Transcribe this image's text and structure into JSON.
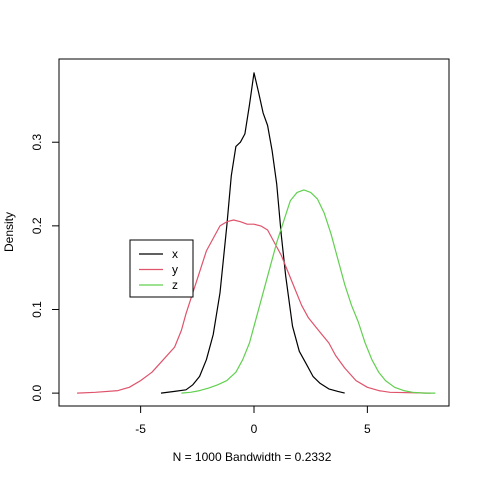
{
  "chart_data": {
    "type": "line",
    "title": "",
    "xlabel": "N = 1000   Bandwidth = 0.2332",
    "ylabel": "Density",
    "xlim": [
      -8.6,
      8.6
    ],
    "ylim": [
      -0.0154,
      0.3995
    ],
    "x_ticks": [
      -5,
      0,
      5
    ],
    "x_tick_labels": [
      "-5",
      "0",
      "5"
    ],
    "y_ticks": [
      0.0,
      0.1,
      0.2,
      0.3
    ],
    "y_tick_labels": [
      "0.0",
      "0.1",
      "0.2",
      "0.3"
    ],
    "grid": false,
    "legend": {
      "placement": "center-left",
      "entries": [
        {
          "name": "x",
          "color": "#000000"
        },
        {
          "name": "y",
          "color": "#DF536B"
        },
        {
          "name": "z",
          "color": "#61D04F"
        }
      ]
    },
    "series": [
      {
        "name": "x",
        "color": "#000000",
        "points": [
          [
            -4.1,
            0.0
          ],
          [
            -3.5,
            0.002
          ],
          [
            -3.0,
            0.004
          ],
          [
            -2.7,
            0.01
          ],
          [
            -2.4,
            0.02
          ],
          [
            -2.1,
            0.04
          ],
          [
            -1.8,
            0.07
          ],
          [
            -1.5,
            0.12
          ],
          [
            -1.2,
            0.2
          ],
          [
            -1.0,
            0.26
          ],
          [
            -0.8,
            0.295
          ],
          [
            -0.6,
            0.3
          ],
          [
            -0.4,
            0.31
          ],
          [
            -0.2,
            0.345
          ],
          [
            0.0,
            0.383
          ],
          [
            0.2,
            0.36
          ],
          [
            0.4,
            0.335
          ],
          [
            0.6,
            0.32
          ],
          [
            0.8,
            0.29
          ],
          [
            1.0,
            0.25
          ],
          [
            1.2,
            0.19
          ],
          [
            1.4,
            0.14
          ],
          [
            1.7,
            0.08
          ],
          [
            2.0,
            0.05
          ],
          [
            2.3,
            0.035
          ],
          [
            2.6,
            0.02
          ],
          [
            2.9,
            0.012
          ],
          [
            3.3,
            0.005
          ],
          [
            3.7,
            0.002
          ],
          [
            4.0,
            0.0
          ]
        ]
      },
      {
        "name": "y",
        "color": "#DF536B",
        "points": [
          [
            -7.8,
            0.0
          ],
          [
            -7.0,
            0.001
          ],
          [
            -6.0,
            0.003
          ],
          [
            -5.5,
            0.007
          ],
          [
            -5.0,
            0.015
          ],
          [
            -4.5,
            0.025
          ],
          [
            -4.0,
            0.04
          ],
          [
            -3.5,
            0.055
          ],
          [
            -3.2,
            0.075
          ],
          [
            -3.0,
            0.095
          ],
          [
            -2.7,
            0.12
          ],
          [
            -2.4,
            0.145
          ],
          [
            -2.1,
            0.17
          ],
          [
            -1.8,
            0.185
          ],
          [
            -1.5,
            0.2
          ],
          [
            -1.2,
            0.205
          ],
          [
            -0.9,
            0.207
          ],
          [
            -0.6,
            0.205
          ],
          [
            -0.3,
            0.202
          ],
          [
            0.0,
            0.202
          ],
          [
            0.3,
            0.2
          ],
          [
            0.6,
            0.195
          ],
          [
            0.9,
            0.18
          ],
          [
            1.2,
            0.165
          ],
          [
            1.5,
            0.145
          ],
          [
            1.8,
            0.125
          ],
          [
            2.1,
            0.105
          ],
          [
            2.4,
            0.09
          ],
          [
            2.7,
            0.08
          ],
          [
            3.0,
            0.07
          ],
          [
            3.3,
            0.06
          ],
          [
            3.6,
            0.045
          ],
          [
            4.0,
            0.03
          ],
          [
            4.5,
            0.015
          ],
          [
            5.0,
            0.007
          ],
          [
            5.5,
            0.003
          ],
          [
            6.0,
            0.001
          ],
          [
            7.8,
            0.0
          ]
        ]
      },
      {
        "name": "z",
        "color": "#61D04F",
        "points": [
          [
            -3.2,
            0.0
          ],
          [
            -2.8,
            0.001
          ],
          [
            -2.4,
            0.003
          ],
          [
            -2.0,
            0.006
          ],
          [
            -1.6,
            0.01
          ],
          [
            -1.2,
            0.015
          ],
          [
            -0.8,
            0.025
          ],
          [
            -0.5,
            0.04
          ],
          [
            -0.2,
            0.06
          ],
          [
            0.1,
            0.09
          ],
          [
            0.4,
            0.12
          ],
          [
            0.7,
            0.15
          ],
          [
            1.0,
            0.18
          ],
          [
            1.3,
            0.205
          ],
          [
            1.6,
            0.23
          ],
          [
            1.9,
            0.24
          ],
          [
            2.2,
            0.243
          ],
          [
            2.5,
            0.24
          ],
          [
            2.8,
            0.232
          ],
          [
            3.1,
            0.215
          ],
          [
            3.4,
            0.19
          ],
          [
            3.7,
            0.16
          ],
          [
            4.0,
            0.13
          ],
          [
            4.3,
            0.105
          ],
          [
            4.6,
            0.085
          ],
          [
            4.9,
            0.06
          ],
          [
            5.2,
            0.04
          ],
          [
            5.5,
            0.025
          ],
          [
            5.8,
            0.015
          ],
          [
            6.2,
            0.007
          ],
          [
            6.6,
            0.003
          ],
          [
            7.0,
            0.001
          ],
          [
            7.5,
            0.0
          ],
          [
            8.0,
            0.0
          ]
        ]
      }
    ]
  }
}
